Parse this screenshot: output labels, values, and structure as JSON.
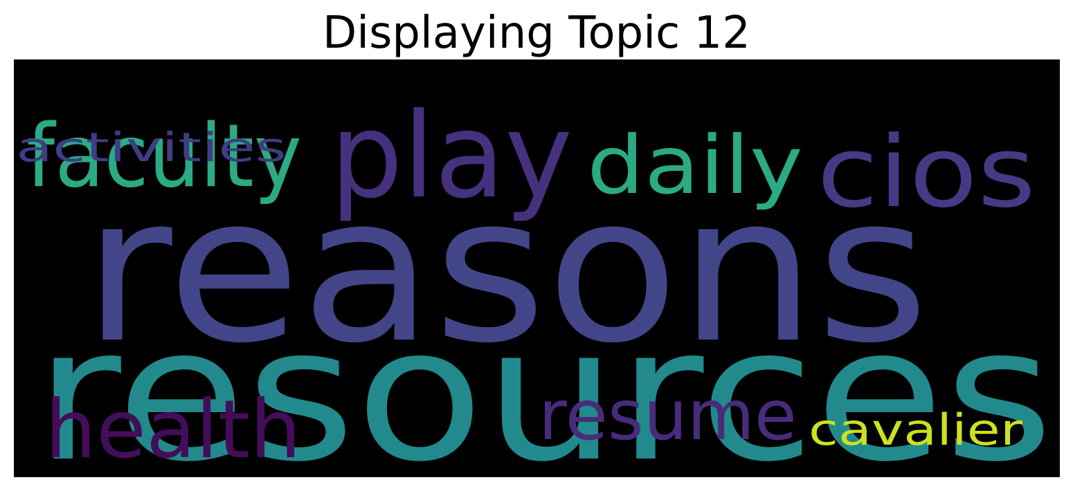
{
  "title": "Displaying Topic 12",
  "wordcloud": {
    "background": "#000000",
    "words": [
      {
        "text": "reasons",
        "color": "#424688"
      },
      {
        "text": "resources",
        "color": "#228A8D"
      },
      {
        "text": "faculty",
        "color": "#2BAA84"
      },
      {
        "text": "play",
        "color": "#46317E"
      },
      {
        "text": "daily",
        "color": "#2BAA84"
      },
      {
        "text": "cios",
        "color": "#443B84"
      },
      {
        "text": "activities",
        "color": "#3F3D83"
      },
      {
        "text": "health",
        "color": "#440D5A"
      },
      {
        "text": "resume",
        "color": "#482C7B"
      },
      {
        "text": "cavalier",
        "color": "#CDE11E"
      }
    ]
  }
}
